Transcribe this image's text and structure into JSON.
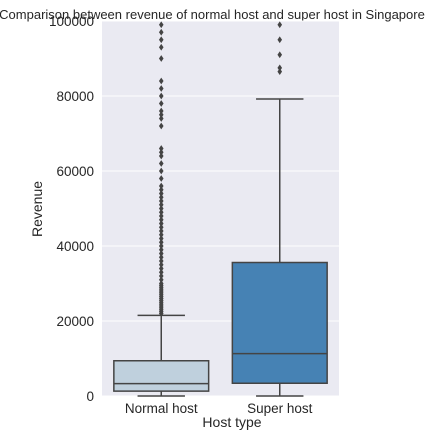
{
  "chart_data": {
    "type": "boxplot",
    "title": "Comparison between revenue of normal host and super host in Singapore",
    "xlabel": "Host type",
    "ylabel": "Revenue",
    "ylim": [
      0,
      100000
    ],
    "yticks": [
      0,
      20000,
      40000,
      60000,
      80000,
      100000
    ],
    "ytick_labels": [
      "0",
      "20000",
      "40000",
      "60000",
      "80000",
      "100000"
    ],
    "categories": [
      "Normal host",
      "Super host"
    ],
    "grid": true,
    "boxes": [
      {
        "category": "Normal host",
        "whisker_low": 0,
        "q1": 1300,
        "median": 3300,
        "q3": 9400,
        "whisker_high": 21500,
        "color": "#bfd0dd",
        "outliers": [
          22000,
          22500,
          23000,
          23500,
          24000,
          24500,
          25000,
          25500,
          26000,
          26500,
          27000,
          27500,
          28000,
          28500,
          29000,
          29500,
          30000,
          31000,
          32000,
          33000,
          34000,
          35000,
          36000,
          37000,
          38000,
          39000,
          40000,
          41000,
          42000,
          43000,
          44000,
          45000,
          46000,
          47000,
          48000,
          49000,
          50000,
          51000,
          52000,
          53000,
          54000,
          55000,
          56000,
          58000,
          60000,
          62000,
          64000,
          65000,
          66000,
          72000,
          74000,
          75000,
          76000,
          78000,
          80000,
          82000,
          84000,
          90000,
          93000,
          95000,
          97000,
          99000
        ]
      },
      {
        "category": "Super host",
        "whisker_low": 0,
        "q1": 3400,
        "median": 11300,
        "q3": 35600,
        "whisker_high": 79200,
        "color": "#4682b4",
        "outliers": [
          86500,
          87500,
          91000,
          95000,
          99000
        ]
      }
    ],
    "colors": {
      "background": "#eaeaf2",
      "grid": "#ffffff",
      "line": "#444444",
      "normal_box": "#bfd0dd",
      "super_box": "#4682b4"
    }
  }
}
